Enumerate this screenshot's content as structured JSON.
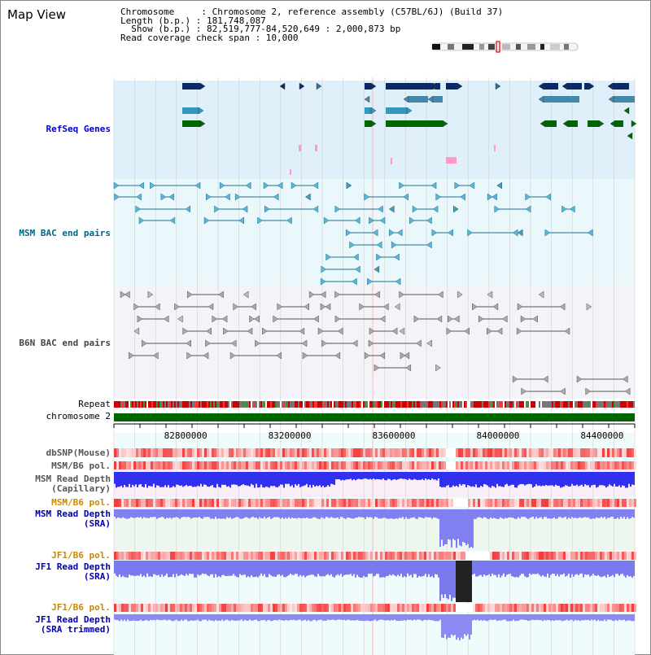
{
  "view_title": "Map View",
  "info": {
    "chromosome_line": "Chromosome     : Chromosome 2, reference assembly (C57BL/6J) (Build 37)",
    "length_line": "Length (b.p.) : 181,748,087",
    "show_line": "  Show (b.p.) : 82,519,777-84,520,649 : 2,000,873 bp",
    "coverage_line": "Read coverage check span : 10,000"
  },
  "track_labels": {
    "refseq": "RefSeq Genes",
    "msm_bac": "MSM BAC end pairs",
    "b6n_bac": "B6N BAC end pairs",
    "repeat": "Repeat",
    "chromosome": "chromosome 2",
    "dbsnp": "dbSNP(Mouse)",
    "msm_pol_1": "MSM/B6 pol.",
    "msm_depth_cap_1": "MSM Read Depth",
    "msm_depth_cap_2": "(Capillary)",
    "msm_pol_2": "MSM/B6 pol.",
    "msm_depth_sra_1": "MSM Read Depth",
    "msm_depth_sra_2": "(SRA)",
    "jf1_pol_1": "JF1/B6 pol.",
    "jf1_depth_1": "JF1 Read Depth",
    "jf1_depth_2": "(SRA)",
    "jf1_pol_2": "JF1/B6 pol.",
    "jf1_trim_1": "JF1 Read Depth",
    "jf1_trim_2": "(SRA trimmed)"
  },
  "axis_ticks": [
    "82800000",
    "83200000",
    "83600000",
    "84000000",
    "84400000"
  ],
  "axis_range": [
    82519777,
    84520649
  ],
  "colors": {
    "refseq_label": "#0000cc",
    "msm_label": "#006688",
    "b6n_label": "#444444",
    "pol_label": "#cc8800",
    "depth_label": "#0000aa",
    "refseq_bg": "#dff0fa",
    "bac_bg": "#eaf8fb",
    "chrom_green": "#006600",
    "depth_blue": "#3030ee"
  }
}
